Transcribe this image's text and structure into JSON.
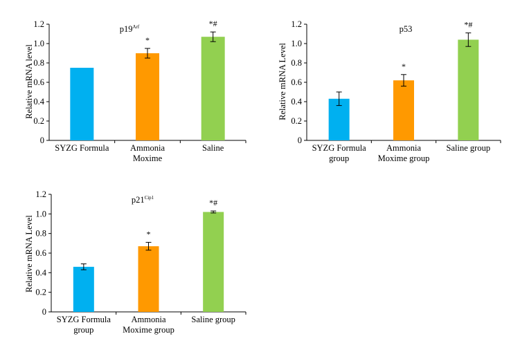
{
  "chart_data": [
    {
      "type": "bar",
      "title": "p19",
      "title_sup": "Arf",
      "ylabel": "Relative mRNA level",
      "ylim": [
        0,
        1.2
      ],
      "yticks": [
        "0",
        "0.2",
        "0.4",
        "0.6",
        "0.8",
        "1.0",
        "1.2"
      ],
      "categories": [
        [
          "SYZG Formula"
        ],
        [
          "Ammonia",
          "Moxime"
        ],
        [
          "Saline"
        ]
      ],
      "values": [
        0.75,
        0.9,
        1.07
      ],
      "errors": [
        0.0,
        0.05,
        0.05
      ],
      "significance": [
        "",
        "*",
        "*#"
      ],
      "colors": [
        "#00b0f0",
        "#ff9900",
        "#92d050"
      ],
      "grid": false
    },
    {
      "type": "bar",
      "title": "p53",
      "title_sup": "",
      "ylabel": "Relative mRNA Level",
      "ylim": [
        0,
        1.2
      ],
      "yticks": [
        "0",
        "0.2",
        "0.4",
        "0.6",
        "0.8",
        "1.0",
        "1.2"
      ],
      "categories": [
        [
          "SYZG Formula",
          "group"
        ],
        [
          "Ammonia",
          "Moxime group"
        ],
        [
          "Saline group"
        ]
      ],
      "values": [
        0.43,
        0.62,
        1.04
      ],
      "errors": [
        0.07,
        0.06,
        0.07
      ],
      "significance": [
        "",
        "*",
        "*#"
      ],
      "colors": [
        "#00b0f0",
        "#ff9900",
        "#92d050"
      ],
      "grid": false
    },
    {
      "type": "bar",
      "title": "p21",
      "title_sup": "Cip1",
      "ylabel": "Relative mRNA Level",
      "ylim": [
        0,
        1.2
      ],
      "yticks": [
        "0",
        "0.2",
        "0.4",
        "0.6",
        "0.8",
        "1.0",
        "1.2"
      ],
      "categories": [
        [
          "SYZG Formula",
          "group"
        ],
        [
          "Ammonia",
          "Moxime group"
        ],
        [
          "Saline group"
        ]
      ],
      "values": [
        0.46,
        0.67,
        1.02
      ],
      "errors": [
        0.03,
        0.04,
        0.01
      ],
      "significance": [
        "",
        "*",
        "*#"
      ],
      "colors": [
        "#00b0f0",
        "#ff9900",
        "#92d050"
      ],
      "grid": false
    }
  ]
}
